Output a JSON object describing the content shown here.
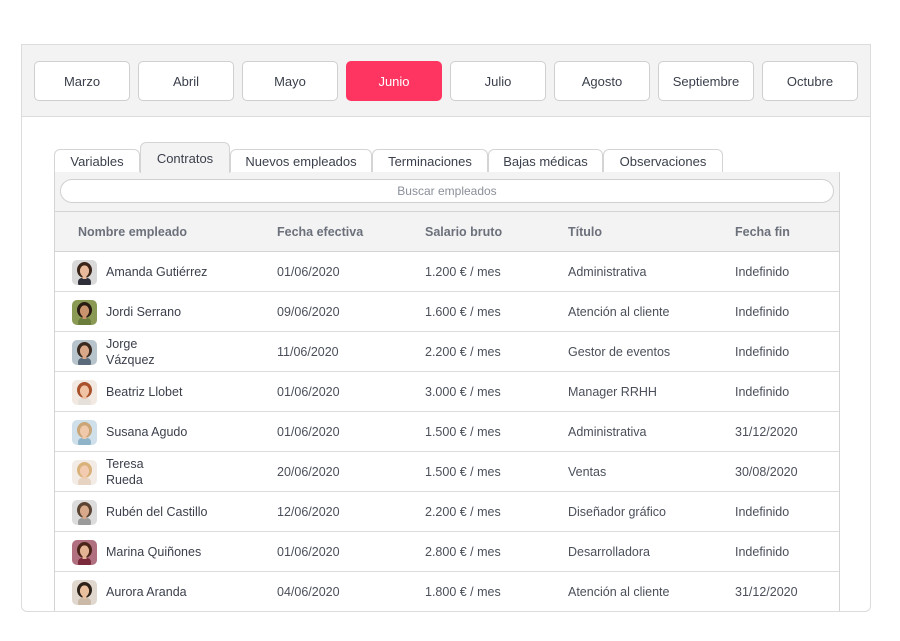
{
  "months": [
    {
      "label": "Marzo",
      "active": false
    },
    {
      "label": "Abril",
      "active": false
    },
    {
      "label": "Mayo",
      "active": false
    },
    {
      "label": "Junio",
      "active": true
    },
    {
      "label": "Julio",
      "active": false
    },
    {
      "label": "Agosto",
      "active": false
    },
    {
      "label": "Septiembre",
      "active": false
    },
    {
      "label": "Octubre",
      "active": false
    }
  ],
  "tabs": [
    {
      "label": "Variables",
      "active": false
    },
    {
      "label": "Contratos",
      "active": true
    },
    {
      "label": "Nuevos empleados",
      "active": false
    },
    {
      "label": "Terminaciones",
      "active": false
    },
    {
      "label": "Bajas médicas",
      "active": false
    },
    {
      "label": "Observaciones",
      "active": false
    }
  ],
  "search": {
    "placeholder": "Buscar empleados",
    "value": ""
  },
  "table": {
    "headers": [
      "Nombre empleado",
      "Fecha efectiva",
      "Salario bruto",
      "Título",
      "Fecha fin"
    ],
    "rows": [
      {
        "name": "Amanda Gutiérrez",
        "date": "01/06/2020",
        "salary": "1.200 € / mes",
        "title": "Administrativa",
        "end": "Indefinido",
        "avatar": {
          "skin": "#e8b99a",
          "hair": "#3b2418",
          "shirt": "#2f2f3a",
          "bg": "#d9d9d9"
        }
      },
      {
        "name": "Jordi Serrano",
        "date": "09/06/2020",
        "salary": "1.600 € / mes",
        "title": "Atención al cliente",
        "end": "Indefinido",
        "avatar": {
          "skin": "#c9936e",
          "hair": "#2a1c12",
          "shirt": "#6b7d3a",
          "bg": "#8a9a55"
        }
      },
      {
        "name": "Jorge Vázquez",
        "date": "11/06/2020",
        "salary": "2.200 € / mes",
        "title": "Gestor de eventos",
        "end": "Indefinido",
        "avatar": {
          "skin": "#d9a889",
          "hair": "#3a2a20",
          "shirt": "#5a6a7a",
          "bg": "#b8c4cc"
        }
      },
      {
        "name": "Beatriz Llobet",
        "date": "01/06/2020",
        "salary": "3.000 € / mes",
        "title": "Manager RRHH",
        "end": "Indefinido",
        "avatar": {
          "skin": "#efc3a4",
          "hair": "#a8512a",
          "shirt": "#e6e0da",
          "bg": "#f1e9e2"
        }
      },
      {
        "name": "Susana Agudo",
        "date": "01/06/2020",
        "salary": "1.500 € / mes",
        "title": "Administrativa",
        "end": "31/12/2020",
        "avatar": {
          "skin": "#f0c8aa",
          "hair": "#c9a577",
          "shirt": "#8fb3c9",
          "bg": "#cfe0ea"
        }
      },
      {
        "name": "Teresa Rueda",
        "date": "20/06/2020",
        "salary": "1.500 € / mes",
        "title": "Ventas",
        "end": "30/08/2020",
        "avatar": {
          "skin": "#f2cbb0",
          "hair": "#d8b27a",
          "shirt": "#e7d3c2",
          "bg": "#f3ece6"
        }
      },
      {
        "name": "Rubén del Castillo",
        "date": "12/06/2020",
        "salary": "2.200 € / mes",
        "title": "Diseñador gráfico",
        "end": "Indefinido",
        "avatar": {
          "skin": "#d8a98a",
          "hair": "#5a4332",
          "shirt": "#9a9a9a",
          "bg": "#dcdcdc"
        }
      },
      {
        "name": "Marina Quiñones",
        "date": "01/06/2020",
        "salary": "2.800 € / mes",
        "title": "Desarrolladora",
        "end": "Indefinido",
        "avatar": {
          "skin": "#e4b394",
          "hair": "#4a2418",
          "shirt": "#7a2a3a",
          "bg": "#b07080"
        }
      },
      {
        "name": "Aurora Aranda",
        "date": "04/06/2020",
        "salary": "1.800 € / mes",
        "title": "Atención al cliente",
        "end": "31/12/2020",
        "avatar": {
          "skin": "#e9bf9e",
          "hair": "#2e2118",
          "shirt": "#c9b9a6",
          "bg": "#e0d8cf"
        }
      }
    ]
  }
}
